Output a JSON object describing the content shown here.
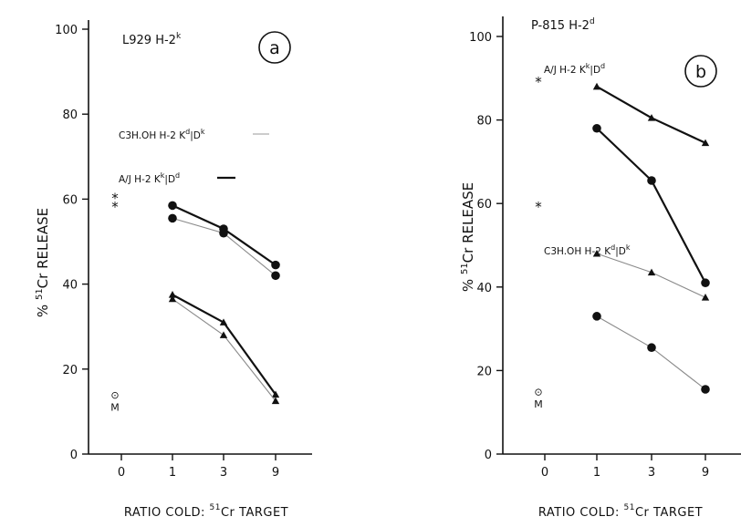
{
  "chart_data": [
    {
      "type": "line",
      "panel": "a",
      "title": "L929 H-2",
      "title_sup": "k",
      "ylabel_sup": "51",
      "ylabel_pct": "%",
      "ylabel_mid": "Cr",
      "ylabel_end": "RELEASE",
      "xlabel_pre": "RATIO COLD:",
      "xlabel_sup": "51",
      "xlabel_post": "Cr TARGET",
      "categories": [
        "0",
        "1",
        "3",
        "9"
      ],
      "ylim": [
        0,
        100
      ],
      "yticks": [
        "0",
        "20",
        "40",
        "60",
        "80",
        "100"
      ],
      "legend": [
        {
          "pre": "C3H.OH H-2 K",
          "s1": "d",
          "mid": "D",
          "s2": "k",
          "style": "thin"
        },
        {
          "pre": "A/J H-2 K",
          "s1": "k",
          "mid": "D",
          "s2": "d",
          "style": "thick"
        }
      ],
      "controls": [
        {
          "x": "0",
          "y": 61,
          "label": "*"
        },
        {
          "x": "0",
          "y": 59,
          "label": "*"
        },
        {
          "x": "0",
          "y": 14,
          "label": "⊙"
        },
        {
          "x": "0",
          "y": 11,
          "label": "M"
        }
      ],
      "series": [
        {
          "style": "thick",
          "marker": "circle",
          "x": [
            "1",
            "3",
            "9"
          ],
          "values": [
            58.5,
            53,
            44.5
          ]
        },
        {
          "style": "thin",
          "marker": "circle",
          "x": [
            "1",
            "3",
            "9"
          ],
          "values": [
            55.5,
            52,
            42
          ]
        },
        {
          "style": "thick",
          "marker": "triangle",
          "x": [
            "1",
            "3",
            "9"
          ],
          "values": [
            37.5,
            31,
            14
          ]
        },
        {
          "style": "thin",
          "marker": "triangle",
          "x": [
            "1",
            "3",
            "9"
          ],
          "values": [
            36.5,
            28,
            12.5
          ]
        }
      ]
    },
    {
      "type": "line",
      "panel": "b",
      "title": "P-815 H-2",
      "title_sup": "d",
      "ylabel_sup": "51",
      "ylabel_pct": "%",
      "ylabel_mid": "Cr",
      "ylabel_end": "RELEASE",
      "xlabel_pre": "RATIO COLD:",
      "xlabel_sup": "51",
      "xlabel_post": "Cr TARGET",
      "categories": [
        "0",
        "1",
        "3",
        "9"
      ],
      "ylim": [
        0,
        100
      ],
      "yticks": [
        "0",
        "20",
        "40",
        "60",
        "80",
        "100"
      ],
      "legend": [
        {
          "pre": "A/J H-2 K",
          "s1": "k",
          "mid": "D",
          "s2": "d",
          "style": "thick"
        },
        {
          "pre": "C3H.OH H-2 K",
          "s1": "d",
          "mid": "D",
          "s2": "k",
          "style": "thin"
        }
      ],
      "controls": [
        {
          "x": "0",
          "y": 90,
          "label": "*"
        },
        {
          "x": "0",
          "y": 60,
          "label": "*"
        },
        {
          "x": "0",
          "y": 15,
          "label": "⊙"
        },
        {
          "x": "0",
          "y": 12,
          "label": "M"
        }
      ],
      "series": [
        {
          "style": "thick",
          "marker": "triangle",
          "x": [
            "1",
            "3",
            "9"
          ],
          "values": [
            88,
            80.5,
            74.5
          ]
        },
        {
          "style": "thick",
          "marker": "circle",
          "x": [
            "1",
            "3",
            "9"
          ],
          "values": [
            78,
            65.5,
            41
          ]
        },
        {
          "style": "thin",
          "marker": "triangle",
          "x": [
            "1",
            "3",
            "9"
          ],
          "values": [
            48,
            43.5,
            37.5
          ]
        },
        {
          "style": "thin",
          "marker": "circle",
          "x": [
            "1",
            "3",
            "9"
          ],
          "values": [
            33,
            25.5,
            15.5
          ]
        }
      ]
    }
  ]
}
